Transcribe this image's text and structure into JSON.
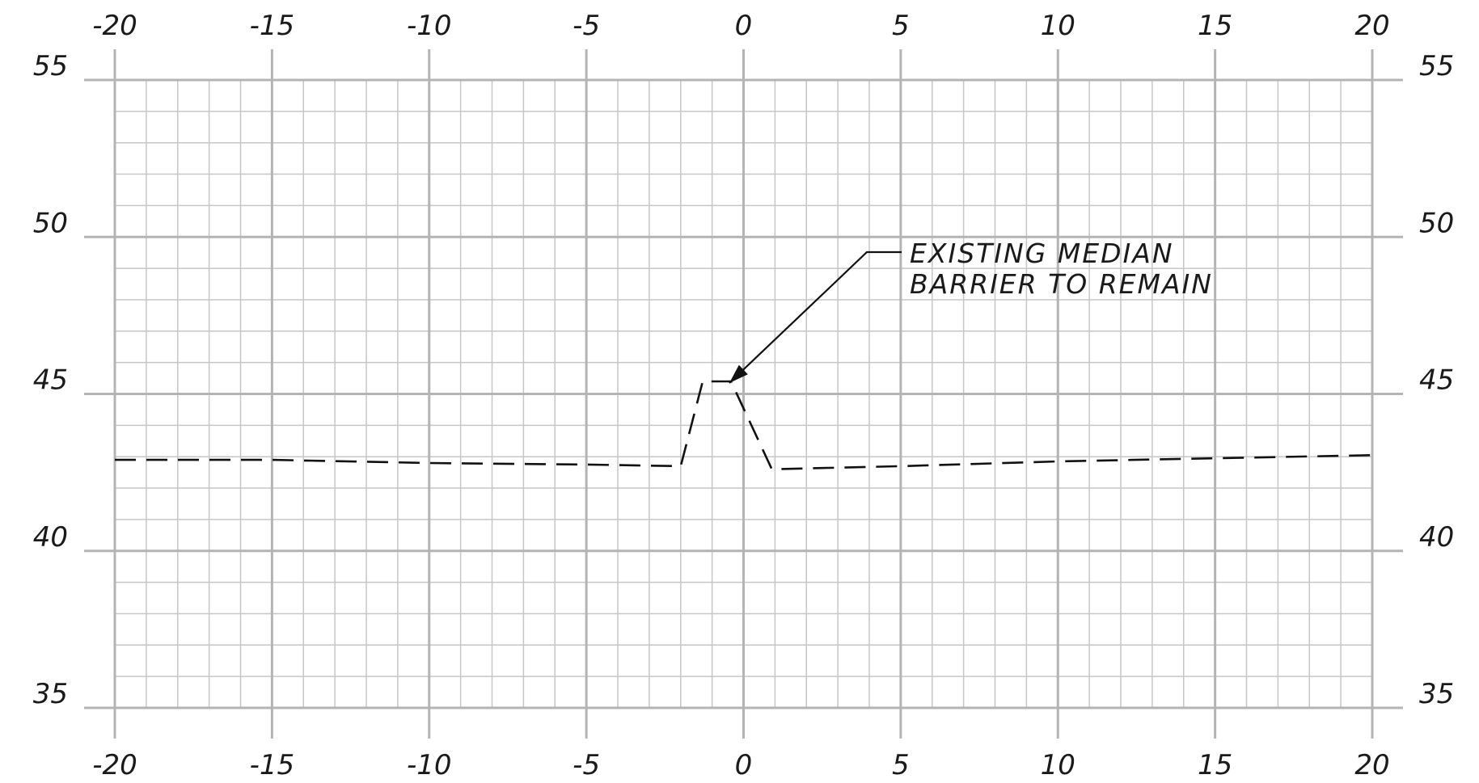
{
  "chart_data": {
    "type": "line",
    "title": "",
    "xlabel": "",
    "ylabel": "",
    "xlim": [
      -20,
      20
    ],
    "ylim": [
      35,
      55
    ],
    "x_ticks": [
      -20,
      -15,
      -10,
      -5,
      0,
      5,
      10,
      15,
      20
    ],
    "x_tick_labels": [
      "-20",
      "-15",
      "-10",
      "-5",
      "0",
      "5",
      "10",
      "15",
      "20"
    ],
    "y_ticks": [
      35,
      40,
      45,
      50,
      55
    ],
    "y_tick_labels": [
      "35",
      "40",
      "45",
      "50",
      "55"
    ],
    "minor_x_step": 1,
    "minor_y_step": 1,
    "grid": true,
    "series": [
      {
        "style": "dashed",
        "color": "#111111",
        "x": [
          -20,
          -15,
          -10,
          -5,
          -2,
          -1.3,
          -0.4,
          0.9,
          5,
          10,
          15,
          20
        ],
        "y": [
          42.9,
          42.9,
          42.8,
          42.75,
          42.7,
          45.4,
          45.4,
          42.6,
          42.7,
          42.85,
          42.95,
          43.05
        ]
      }
    ],
    "annotation": {
      "lines": [
        "EXISTING MEDIAN",
        "BARRIER TO REMAIN"
      ],
      "points_to": {
        "x": -0.4,
        "y": 45.4
      }
    }
  }
}
